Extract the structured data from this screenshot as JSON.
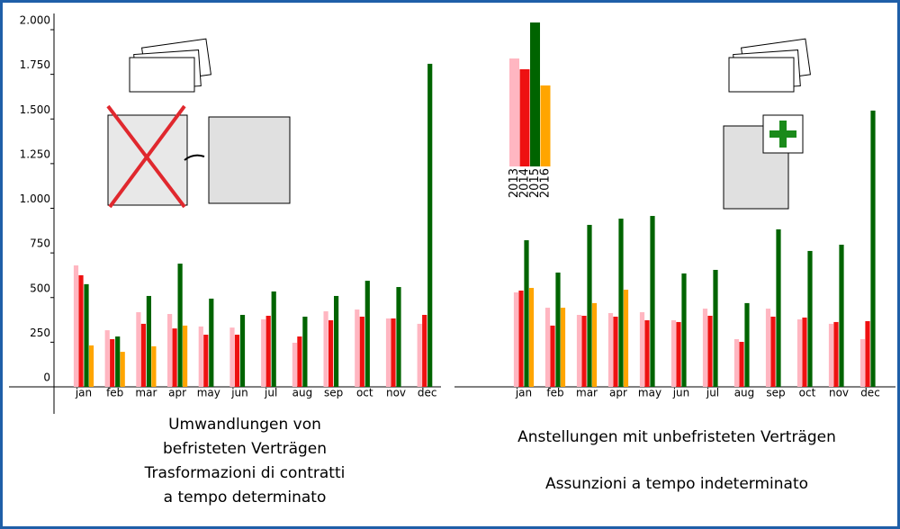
{
  "chart_data": [
    {
      "type": "bar",
      "title": [
        "Umwandlungen von",
        "befristeten  Verträgen",
        "Trasformazioni di contratti",
        "a tempo determinato"
      ],
      "categories": [
        "jan",
        "feb",
        "mar",
        "apr",
        "may",
        "jun",
        "jul",
        "aug",
        "sep",
        "oct",
        "nov",
        "dec"
      ],
      "series": [
        {
          "color": "#ffb6c1",
          "values": [
            680,
            317,
            418,
            408,
            338,
            332,
            378,
            247,
            423,
            433,
            383,
            353
          ]
        },
        {
          "color": "#ee1111",
          "values": [
            625,
            267,
            353,
            327,
            292,
            292,
            398,
            282,
            373,
            393,
            383,
            403
          ]
        },
        {
          "color": "#006400",
          "values": [
            575,
            282,
            509,
            690,
            494,
            403,
            534,
            393,
            509,
            594,
            559,
            1809
          ]
        },
        {
          "color": "#ffa500",
          "values": [
            232,
            196,
            227,
            343,
            null,
            null,
            null,
            null,
            null,
            null,
            null,
            null
          ]
        }
      ],
      "ylim": [
        0,
        2000
      ],
      "yticks": [
        0,
        250,
        500,
        750,
        {
          "value": 1000,
          "label": "1.000"
        },
        {
          "value": 1250,
          "label": "1.250"
        },
        {
          "value": 1500,
          "label": "1.500"
        },
        {
          "value": 1750,
          "label": "1.750"
        },
        {
          "value": 2000,
          "label": "2.000"
        }
      ]
    },
    {
      "type": "bar",
      "title": [
        "Anstellungen mit unbefristeten Verträgen",
        "Assunzioni a tempo indeterminato"
      ],
      "categories": [
        "jan",
        "feb",
        "mar",
        "apr",
        "may",
        "jun",
        "jul",
        "aug",
        "sep",
        "oct",
        "nov",
        "dec"
      ],
      "series": [
        {
          "name": "2013",
          "color": "#ffb6c1",
          "values": [
            529,
            443,
            403,
            413,
            418,
            373,
            438,
            267,
            438,
            378,
            353,
            267
          ]
        },
        {
          "name": "2014",
          "color": "#ee1111",
          "values": [
            539,
            343,
            398,
            393,
            373,
            363,
            398,
            252,
            393,
            388,
            363,
            368
          ]
        },
        {
          "name": "2015",
          "color": "#006400",
          "values": [
            821,
            640,
            907,
            942,
            957,
            635,
            655,
            469,
            882,
            761,
            796,
            1547
          ]
        },
        {
          "name": "2016",
          "color": "#ffa500",
          "values": [
            554,
            443,
            469,
            544,
            null,
            null,
            null,
            null,
            null,
            null,
            null,
            null
          ]
        }
      ],
      "ylim": [
        0,
        2000
      ]
    }
  ]
}
